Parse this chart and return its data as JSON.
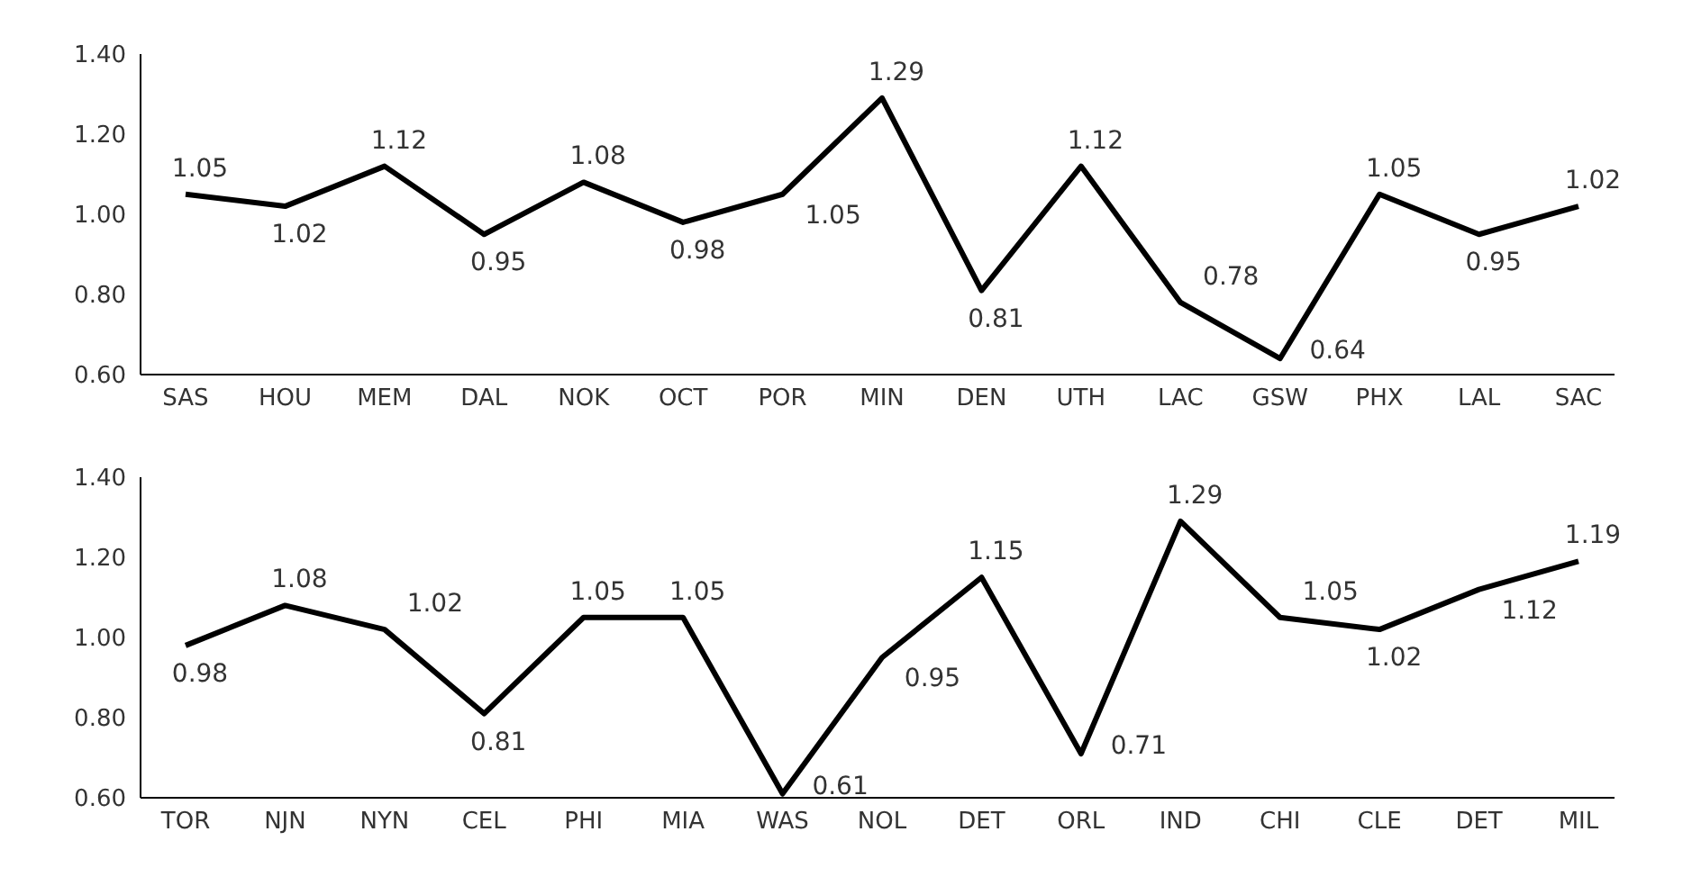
{
  "chart_data": [
    {
      "type": "line",
      "categories": [
        "SAS",
        "HOU",
        "MEM",
        "DAL",
        "NOK",
        "OCT",
        "POR",
        "MIN",
        "DEN",
        "UTH",
        "LAC",
        "GSW",
        "PHX",
        "LAL",
        "SAC"
      ],
      "series": [
        {
          "color": "#000000",
          "values": [
            1.05,
            1.02,
            1.12,
            0.95,
            1.08,
            0.98,
            1.05,
            1.29,
            0.81,
            1.12,
            0.78,
            0.64,
            1.05,
            0.95,
            1.02
          ]
        }
      ],
      "ylim": [
        0.6,
        1.4
      ],
      "yticks": [
        {
          "value": 0.6,
          "label": "0.60"
        },
        {
          "value": 0.8,
          "label": "0.80"
        },
        {
          "value": 1.0,
          "label": "1.00"
        },
        {
          "value": 1.2,
          "label": "1.20"
        },
        {
          "value": 1.4,
          "label": "1.40"
        }
      ],
      "data_labels": true,
      "grid": false,
      "legend": false,
      "marker": "none",
      "line_style": "solid"
    },
    {
      "type": "line",
      "categories": [
        "TOR",
        "NJN",
        "NYN",
        "CEL",
        "PHI",
        "MIA",
        "WAS",
        "NOL",
        "DET",
        "ORL",
        "IND",
        "CHI",
        "CLE",
        "DET",
        "MIL"
      ],
      "series": [
        {
          "color": "#000000",
          "values": [
            0.98,
            1.08,
            1.02,
            0.81,
            1.05,
            1.05,
            0.61,
            0.95,
            1.15,
            0.71,
            1.29,
            1.05,
            1.02,
            1.12,
            1.19
          ]
        }
      ],
      "ylim": [
        0.6,
        1.4
      ],
      "yticks": [
        {
          "value": 0.6,
          "label": "0.60"
        },
        {
          "value": 0.8,
          "label": "0.80"
        },
        {
          "value": 1.0,
          "label": "1.00"
        },
        {
          "value": 1.2,
          "label": "1.20"
        },
        {
          "value": 1.4,
          "label": "1.40"
        }
      ],
      "data_labels": true,
      "grid": false,
      "legend": false,
      "marker": "none",
      "line_style": "solid"
    }
  ]
}
